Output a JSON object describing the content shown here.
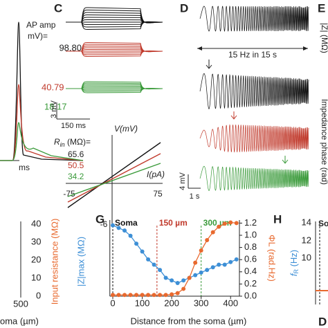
{
  "panel_labels": [
    "C",
    "D",
    "E",
    "G",
    "H"
  ],
  "panel_b": {
    "title": "AP amp",
    "unit": "mV)=",
    "values": [
      "98.80",
      "40.79",
      "18.17"
    ],
    "time_unit": "ms"
  },
  "panel_c": {
    "scale_v": "3 mV",
    "scale_t": "150 ms",
    "rin_label": "R",
    "rin_sub": "in",
    "rin_unit": " (MΩ)=",
    "rin_values": [
      "65.6",
      "50.5",
      "34.2"
    ],
    "y_label": "V(mV)",
    "x_label": "I(pA)",
    "tick_left": "-75",
    "tick_right": "75",
    "tick_bottom": "-6"
  },
  "panel_d": {
    "stim": "15 Hz in 15 s",
    "scale_v": "4 mV",
    "scale_t": "1 s"
  },
  "panel_e": {
    "y_label_1": "|Z| (MΩ)",
    "y_label_2": "Impedance phase (rad)"
  },
  "panel_f": {
    "y_label": "Input resistance (MΩ)",
    "yticks": [
      "40",
      "30",
      "20",
      "10",
      "0"
    ],
    "xtick": "500",
    "x_label": "oma (µm)"
  },
  "panel_h": {
    "y_label": "f",
    "y_sub": "R",
    "y_unit": " (Hz)",
    "yticks": [
      "14",
      "12",
      "10"
    ],
    "soma": "So",
    "next_label": "D"
  },
  "chart_data": {
    "type": "line",
    "x_label": "Distance from the soma (µm)",
    "y_label": "|Z|max (MΩ)",
    "y2_label": "ΦL (rad.Hz)",
    "x": [
      0,
      20,
      40,
      60,
      80,
      100,
      120,
      140,
      160,
      180,
      200,
      220,
      240,
      260,
      280,
      300,
      320,
      340,
      360,
      380,
      400,
      420
    ],
    "series": [
      {
        "name": "|Z|max",
        "color": "#3d8fd6",
        "values": [
          71,
          70,
          69,
          67,
          64,
          61,
          58,
          56,
          54,
          51,
          50,
          49,
          50,
          51,
          52,
          53,
          54,
          55,
          56,
          56,
          57,
          58
        ]
      },
      {
        "name": "ΦL",
        "color": "#e8692e",
        "axis": "y2",
        "values": [
          0.02,
          0.02,
          0.02,
          0.02,
          0.02,
          0.02,
          0.02,
          0.02,
          0.02,
          0.02,
          0.03,
          0.05,
          0.12,
          0.3,
          0.55,
          0.75,
          0.92,
          1.05,
          1.14,
          1.19,
          1.21,
          1.2
        ]
      }
    ],
    "markers": [
      {
        "x": 0,
        "label": "Soma",
        "color": "#111111"
      },
      {
        "x": 150,
        "label": "150 µm",
        "color": "#c0392b"
      },
      {
        "x": 300,
        "label": "300 µm",
        "color": "#3a9a3a"
      }
    ],
    "xlim": [
      -10,
      430
    ],
    "xticks": [
      0,
      100,
      200,
      300,
      400
    ],
    "ylim": [
      44,
      73
    ],
    "y2lim": [
      0,
      1.25
    ],
    "y2ticks": [
      {
        "value": 0,
        "label": "0.0"
      },
      0.2,
      0.4,
      0.6,
      0.8,
      {
        "value": 1.0,
        "label": "1.0"
      },
      1.2
    ]
  }
}
